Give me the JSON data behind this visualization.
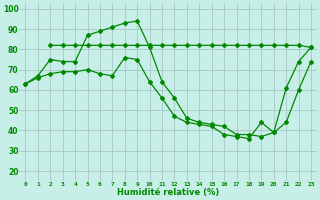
{
  "line1_x": [
    0,
    1,
    2,
    3,
    4,
    5,
    6,
    7,
    8,
    9,
    10,
    11,
    12,
    13,
    14,
    15,
    16,
    17,
    18,
    19,
    20,
    21,
    22,
    23
  ],
  "line1_y": [
    63,
    67,
    75,
    74,
    74,
    87,
    89,
    91,
    93,
    94,
    81,
    64,
    56,
    46,
    44,
    43,
    42,
    38,
    38,
    37,
    39,
    44,
    60,
    74
  ],
  "line2_x": [
    2,
    3,
    4,
    5,
    6,
    7,
    8,
    9,
    10,
    11,
    12,
    13,
    14,
    15,
    16,
    17,
    18,
    19,
    20,
    21,
    22,
    23
  ],
  "line2_y": [
    82,
    82,
    82,
    82,
    82,
    82,
    82,
    82,
    82,
    82,
    82,
    82,
    82,
    82,
    82,
    82,
    82,
    82,
    82,
    82,
    82,
    81
  ],
  "line3_x": [
    0,
    1,
    2,
    3,
    4,
    5,
    6,
    7,
    8,
    9,
    10,
    11,
    12,
    13,
    14,
    15,
    16,
    17,
    18,
    19,
    20,
    21,
    22,
    23
  ],
  "line3_y": [
    63,
    66,
    68,
    69,
    69,
    70,
    68,
    67,
    76,
    75,
    64,
    56,
    47,
    44,
    43,
    42,
    38,
    37,
    36,
    44,
    39,
    61,
    74,
    81
  ],
  "line_color": "#008800",
  "bg_color": "#c8eee8",
  "grid_color": "#aacccc",
  "xlabel": "Humidité relative (%)",
  "xlabel_color": "#008800",
  "tick_color": "#008800",
  "yticks": [
    20,
    30,
    40,
    50,
    60,
    70,
    80,
    90,
    100
  ],
  "xticks": [
    0,
    1,
    2,
    3,
    4,
    5,
    6,
    7,
    8,
    9,
    10,
    11,
    12,
    13,
    14,
    15,
    16,
    17,
    18,
    19,
    20,
    21,
    22,
    23
  ],
  "ylim": [
    15,
    103
  ],
  "xlim": [
    -0.5,
    23.5
  ]
}
